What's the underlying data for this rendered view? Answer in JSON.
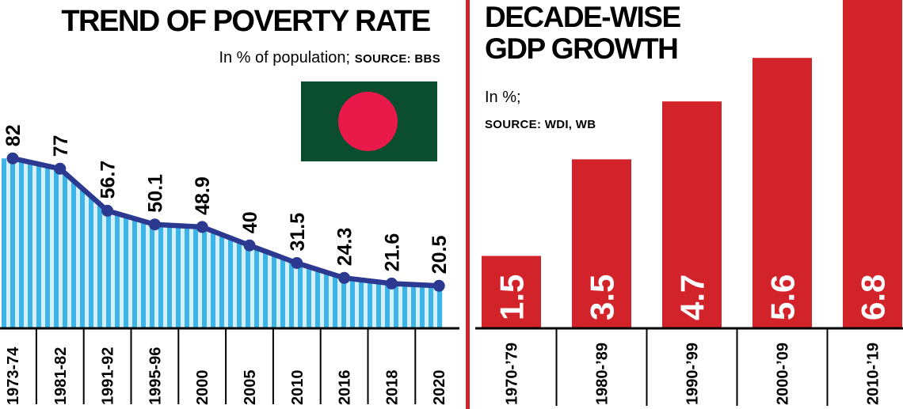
{
  "page": {
    "background": "#ffffff",
    "divider_color": "#d2232a"
  },
  "flag": {
    "field_color": "#0b4e2f",
    "disc_color": "#e9194a"
  },
  "chart_data": [
    {
      "type": "line",
      "title": "TREND OF POVERTY RATE",
      "subtitle": "In % of population;",
      "source": "SOURCE: BBS",
      "x": [
        "1973-74",
        "1981-82",
        "1991-92",
        "1995-96",
        "2000",
        "2005",
        "2010",
        "2016",
        "2018",
        "2020"
      ],
      "values": [
        82,
        77,
        56.7,
        50.1,
        48.9,
        40,
        31.5,
        24.3,
        21.6,
        20.5
      ],
      "point_labels": [
        "82",
        "77",
        "56.7",
        "50.1",
        "48.9",
        "40",
        "31.5",
        "24.3",
        "21.6",
        "20.5"
      ],
      "ylim": [
        0,
        85
      ],
      "grid": false,
      "legend_position": "none",
      "line_color": "#2b3990",
      "marker_color": "#2b3990",
      "area_stripe_color": "#3cb4e7",
      "area_bg_color": "#d6f0fb",
      "axis_color": "#000000"
    },
    {
      "type": "bar",
      "title": "DECADE-WISE GDP GROWTH",
      "title_lines": [
        "DECADE-WISE",
        "GDP GROWTH"
      ],
      "subtitle": "In %;",
      "source": "SOURCE: WDI, WB",
      "categories": [
        "1970-’79",
        "1980-’89",
        "1990-’99",
        "2000-’09",
        "2010-’19"
      ],
      "values": [
        1.5,
        3.5,
        4.7,
        5.6,
        6.8
      ],
      "value_labels": [
        "1.5",
        "3.5",
        "4.7",
        "5.6",
        "6.8"
      ],
      "ylim": [
        0,
        6.8
      ],
      "grid": false,
      "legend_position": "none",
      "bar_color": "#d2232a",
      "value_label_color": "#ffffff",
      "axis_color": "#000000"
    }
  ]
}
